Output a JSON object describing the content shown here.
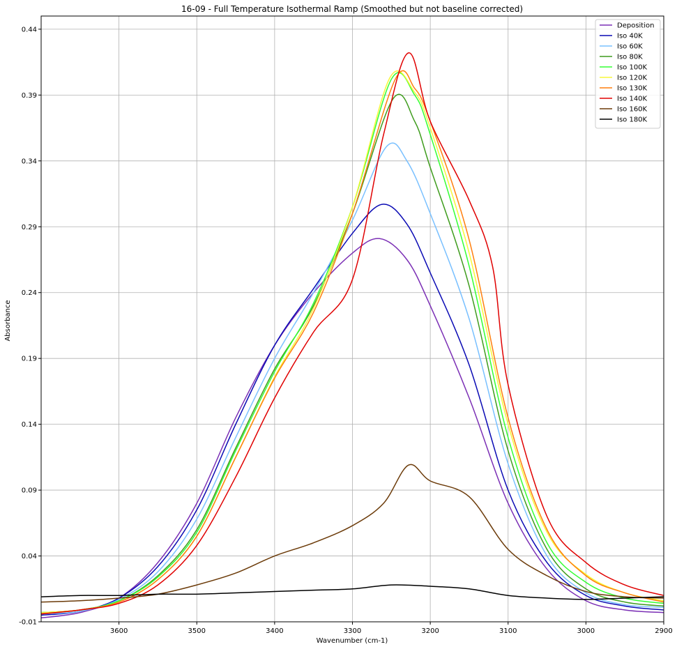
{
  "chart_data": {
    "type": "line",
    "title": "16-09 - Full Temperature Isothermal Ramp (Smoothed but not baseline corrected)",
    "xlabel": "Wavenumber (cm-1)",
    "ylabel": "Absorbance",
    "xlim": [
      3700,
      2900
    ],
    "ylim": [
      -0.01,
      0.45
    ],
    "xticks": [
      3600,
      3500,
      3400,
      3300,
      3200,
      3100,
      3000,
      2900
    ],
    "yticks": [
      -0.01,
      0.04,
      0.09,
      0.14,
      0.19,
      0.24,
      0.29,
      0.34,
      0.39,
      0.44
    ],
    "xtick_labels": [
      "3600",
      "3500",
      "3400",
      "3300",
      "3200",
      "3100",
      "3000",
      "2900"
    ],
    "ytick_labels": [
      "-0.01",
      "0.04",
      "0.09",
      "0.14",
      "0.19",
      "0.24",
      "0.29",
      "0.34",
      "0.39",
      "0.44"
    ],
    "grid": true,
    "legend_position": "top-right",
    "series": [
      {
        "name": "Deposition",
        "color": "#7b2fb5",
        "x": [
          3700,
          3650,
          3600,
          3550,
          3500,
          3450,
          3400,
          3350,
          3300,
          3265,
          3230,
          3200,
          3150,
          3100,
          3050,
          3000,
          2950,
          2900
        ],
        "y": [
          -0.007,
          -0.003,
          0.008,
          0.035,
          0.08,
          0.145,
          0.2,
          0.24,
          0.27,
          0.281,
          0.265,
          0.23,
          0.16,
          0.08,
          0.03,
          0.006,
          -0.001,
          -0.003
        ]
      },
      {
        "name": "Iso 40K",
        "color": "#0a0ab4",
        "x": [
          3700,
          3650,
          3600,
          3550,
          3500,
          3450,
          3400,
          3350,
          3300,
          3262,
          3230,
          3200,
          3150,
          3100,
          3050,
          3000,
          2950,
          2900
        ],
        "y": [
          -0.005,
          -0.002,
          0.008,
          0.032,
          0.075,
          0.14,
          0.2,
          0.243,
          0.285,
          0.307,
          0.292,
          0.255,
          0.185,
          0.09,
          0.035,
          0.01,
          0.002,
          -0.001
        ]
      },
      {
        "name": "Iso 60K",
        "color": "#79c0ff",
        "x": [
          3700,
          3650,
          3600,
          3550,
          3500,
          3450,
          3400,
          3350,
          3300,
          3256,
          3230,
          3200,
          3150,
          3100,
          3050,
          3000,
          2950,
          2900
        ],
        "y": [
          -0.004,
          -0.002,
          0.007,
          0.028,
          0.068,
          0.13,
          0.19,
          0.24,
          0.295,
          0.351,
          0.34,
          0.3,
          0.22,
          0.11,
          0.04,
          0.012,
          0.003,
          0.001
        ]
      },
      {
        "name": "Iso 80K",
        "color": "#3f9c1e",
        "x": [
          3700,
          3650,
          3600,
          3550,
          3500,
          3450,
          3400,
          3350,
          3300,
          3248,
          3220,
          3200,
          3150,
          3100,
          3050,
          3000,
          2950,
          2900
        ],
        "y": [
          -0.003,
          -0.001,
          0.006,
          0.025,
          0.06,
          0.122,
          0.182,
          0.23,
          0.3,
          0.387,
          0.37,
          0.335,
          0.245,
          0.12,
          0.045,
          0.015,
          0.005,
          0.002
        ]
      },
      {
        "name": "Iso 100K",
        "color": "#33ff33",
        "x": [
          3700,
          3650,
          3600,
          3550,
          3500,
          3450,
          3400,
          3350,
          3300,
          3250,
          3220,
          3200,
          3150,
          3100,
          3050,
          3000,
          2950,
          2900
        ],
        "y": [
          -0.003,
          -0.001,
          0.006,
          0.024,
          0.058,
          0.12,
          0.18,
          0.232,
          0.305,
          0.402,
          0.39,
          0.36,
          0.26,
          0.13,
          0.05,
          0.02,
          0.008,
          0.004
        ]
      },
      {
        "name": "Iso 120K",
        "color": "#f7f73a",
        "x": [
          3700,
          3650,
          3600,
          3550,
          3500,
          3450,
          3400,
          3350,
          3300,
          3252,
          3220,
          3200,
          3150,
          3100,
          3050,
          3000,
          2950,
          2900
        ],
        "y": [
          -0.003,
          -0.001,
          0.005,
          0.022,
          0.055,
          0.115,
          0.176,
          0.228,
          0.305,
          0.403,
          0.392,
          0.365,
          0.27,
          0.14,
          0.058,
          0.026,
          0.012,
          0.006
        ]
      },
      {
        "name": "Iso 130K",
        "color": "#ff7f0e",
        "x": [
          3700,
          3650,
          3600,
          3550,
          3500,
          3450,
          3400,
          3350,
          3300,
          3245,
          3220,
          3200,
          3150,
          3100,
          3050,
          3000,
          2950,
          2900
        ],
        "y": [
          -0.004,
          -0.001,
          0.005,
          0.022,
          0.055,
          0.115,
          0.175,
          0.225,
          0.3,
          0.402,
          0.395,
          0.37,
          0.28,
          0.145,
          0.06,
          0.025,
          0.012,
          0.005
        ]
      },
      {
        "name": "Iso 140K",
        "color": "#e00000",
        "x": [
          3700,
          3650,
          3600,
          3550,
          3500,
          3450,
          3400,
          3350,
          3300,
          3260,
          3228,
          3200,
          3150,
          3120,
          3100,
          3050,
          3000,
          2950,
          2900
        ],
        "y": [
          -0.004,
          -0.001,
          0.004,
          0.018,
          0.048,
          0.1,
          0.16,
          0.21,
          0.25,
          0.36,
          0.422,
          0.37,
          0.31,
          0.26,
          0.17,
          0.07,
          0.035,
          0.018,
          0.01
        ]
      },
      {
        "name": "Iso 160K",
        "color": "#6b3a08",
        "x": [
          3700,
          3650,
          3600,
          3550,
          3500,
          3450,
          3400,
          3350,
          3300,
          3260,
          3228,
          3200,
          3150,
          3100,
          3050,
          3000,
          2950,
          2900
        ],
        "y": [
          0.005,
          0.006,
          0.008,
          0.011,
          0.018,
          0.027,
          0.04,
          0.05,
          0.063,
          0.08,
          0.109,
          0.097,
          0.085,
          0.045,
          0.025,
          0.013,
          0.009,
          0.008
        ]
      },
      {
        "name": "Iso 180K",
        "color": "#000000",
        "x": [
          3700,
          3650,
          3600,
          3550,
          3500,
          3450,
          3400,
          3350,
          3300,
          3250,
          3200,
          3150,
          3100,
          3050,
          3000,
          2950,
          2900
        ],
        "y": [
          0.009,
          0.01,
          0.01,
          0.011,
          0.011,
          0.012,
          0.013,
          0.014,
          0.015,
          0.018,
          0.017,
          0.015,
          0.01,
          0.008,
          0.007,
          0.008,
          0.009
        ]
      }
    ]
  }
}
